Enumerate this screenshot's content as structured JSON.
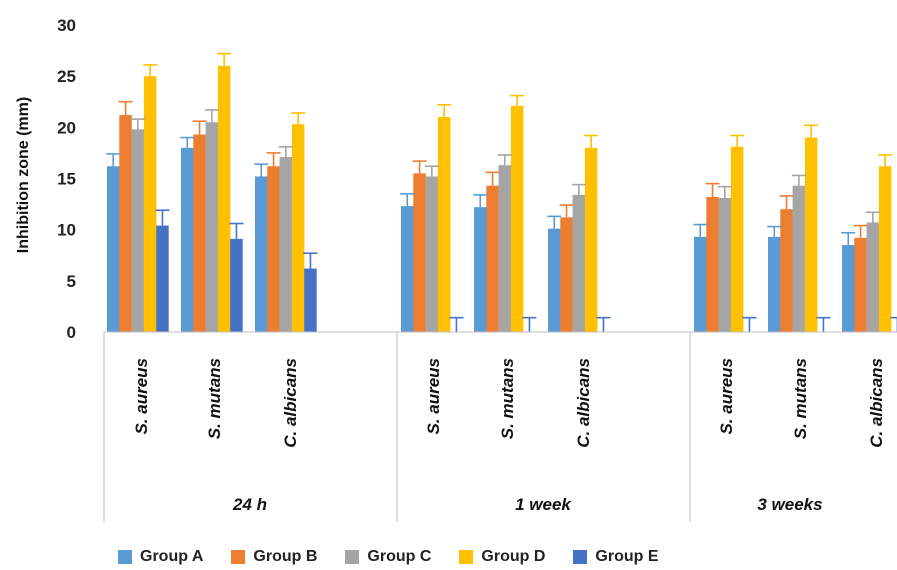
{
  "chart_data": {
    "type": "bar",
    "ylabel": "Inhibition zone (mm)",
    "ylim": [
      0,
      30
    ],
    "yticks": [
      0,
      5,
      10,
      15,
      20,
      25,
      30
    ],
    "grid": false,
    "legend_position": "bottom",
    "groups": [
      {
        "label": "24 h",
        "categories": [
          "S. aureus",
          "S. mutans",
          "C. albicans"
        ]
      },
      {
        "label": "1 week",
        "categories": [
          "S. aureus",
          "S. mutans",
          "C. albicans"
        ]
      },
      {
        "label": "3 weeks",
        "categories": [
          "S. aureus",
          "S. mutans",
          "C. albicans"
        ]
      }
    ],
    "categories": [
      "S. aureus",
      "S. mutans",
      "C. albicans",
      "S. aureus",
      "S. mutans",
      "C. albicans",
      "S. aureus",
      "S. mutans",
      "C. albicans"
    ],
    "series": [
      {
        "name": "Group A",
        "color": "#5B9BD5",
        "values": [
          16.2,
          18.0,
          15.2,
          12.3,
          12.2,
          10.1,
          9.3,
          9.3,
          8.5
        ],
        "errors": [
          1.2,
          1.0,
          1.2,
          1.2,
          1.2,
          1.2,
          1.2,
          1.0,
          1.2
        ]
      },
      {
        "name": "Group B",
        "color": "#ED7D31",
        "values": [
          21.2,
          19.3,
          16.2,
          15.5,
          14.3,
          11.2,
          13.2,
          12.0,
          9.2
        ],
        "errors": [
          1.3,
          1.3,
          1.3,
          1.2,
          1.3,
          1.2,
          1.3,
          1.3,
          1.2
        ]
      },
      {
        "name": "Group C",
        "color": "#A5A5A5",
        "values": [
          19.8,
          20.5,
          17.1,
          15.2,
          16.3,
          13.4,
          13.1,
          14.3,
          10.7
        ],
        "errors": [
          1.0,
          1.2,
          1.0,
          1.0,
          1.0,
          1.0,
          1.1,
          1.0,
          1.0
        ]
      },
      {
        "name": "Group D",
        "color": "#FFC000",
        "values": [
          25.0,
          26.0,
          20.3,
          21.0,
          22.1,
          18.0,
          18.1,
          19.0,
          16.2
        ],
        "errors": [
          1.1,
          1.2,
          1.1,
          1.2,
          1.0,
          1.2,
          1.1,
          1.2,
          1.1
        ]
      },
      {
        "name": "Group E",
        "color": "#4472C4",
        "values": [
          10.4,
          9.1,
          6.2,
          0,
          0,
          0,
          0,
          0,
          0
        ],
        "errors": [
          1.5,
          1.5,
          1.5,
          1.4,
          1.4,
          1.4,
          1.4,
          1.4,
          1.4
        ]
      }
    ]
  }
}
